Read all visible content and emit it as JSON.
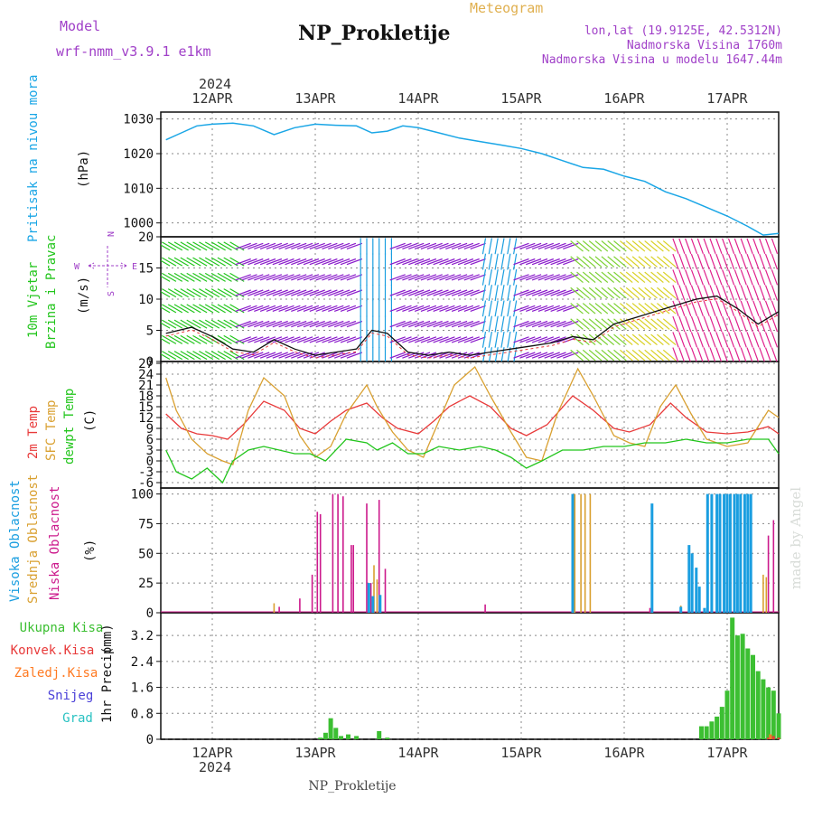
{
  "header": {
    "model_label": "Model",
    "model_name": "wrf-nmm_v3.9.1 e1km",
    "title": "NP_Prokletije",
    "meteogram_label": "Meteogram",
    "lonlat": "lon,lat (19.9125E, 42.5312N)",
    "altitude": "Nadmorska Visina 1760m",
    "model_altitude": "Nadmorska Visina u modelu 1647.44m",
    "footer": "NP_Prokletije",
    "watermark": "made by Angel",
    "year": "2024"
  },
  "colors": {
    "pressure": "#1aa6e6",
    "temp2m": "#e83a3a",
    "sfc_temp": "#d9a030",
    "dewpoint": "#22c51c",
    "cloud_high": "#1a9ee0",
    "cloud_mid": "#d9a030",
    "cloud_low": "#cc1a8c",
    "precip_total": "#3cbf32",
    "precip_conv": "#e83a3a",
    "precip_freezing": "#ff7a22",
    "snow": "#4a40d8",
    "hail": "#2ac2c2",
    "model_text": "#a040c8",
    "meteogram_text": "#e0b050"
  },
  "chart_data": [
    {
      "type": "line",
      "name": "pressure",
      "ylabel": "Pritisak na nivou mora",
      "unit": "(hPa)",
      "ylim": [
        996,
        1032
      ],
      "yticks": [
        1000,
        1010,
        1020,
        1030
      ],
      "x_days": [
        "12APR",
        "13APR",
        "14APR",
        "15APR",
        "16APR",
        "17APR"
      ],
      "x": [
        11.55,
        11.7,
        11.85,
        12.0,
        12.2,
        12.4,
        12.6,
        12.8,
        13.0,
        13.2,
        13.4,
        13.55,
        13.7,
        13.85,
        14.0,
        14.2,
        14.4,
        14.6,
        14.8,
        15.0,
        15.2,
        15.4,
        15.6,
        15.8,
        16.0,
        16.2,
        16.4,
        16.6,
        16.8,
        17.0,
        17.2,
        17.35,
        17.5
      ],
      "values": [
        1024,
        1026,
        1028,
        1028.5,
        1028.8,
        1028,
        1025.5,
        1027.5,
        1028.5,
        1028.2,
        1028,
        1026,
        1026.5,
        1028,
        1027.5,
        1026,
        1024.5,
        1023.5,
        1022.5,
        1021.5,
        1020,
        1018,
        1016,
        1015.5,
        1013.5,
        1012,
        1009,
        1007,
        1004.5,
        1002,
        999,
        996.5,
        997
      ]
    },
    {
      "type": "line",
      "name": "wind",
      "ylabel": "10m Vjetar",
      "ylabel2": "Brzina i Pravac",
      "unit": "(m/s)",
      "compass": {
        "north": "N",
        "west": "W",
        "east": "E",
        "south": "S"
      },
      "ylim": [
        0,
        20
      ],
      "yticks": [
        0,
        5,
        10,
        15,
        20
      ],
      "x": [
        11.55,
        11.8,
        12.0,
        12.2,
        12.4,
        12.6,
        12.8,
        13.0,
        13.2,
        13.4,
        13.55,
        13.7,
        13.9,
        14.1,
        14.3,
        14.5,
        14.7,
        14.9,
        15.1,
        15.3,
        15.5,
        15.7,
        15.9,
        16.1,
        16.3,
        16.5,
        16.7,
        16.9,
        17.1,
        17.3,
        17.5
      ],
      "values": [
        4.5,
        5.5,
        4,
        2,
        1.5,
        3.5,
        2,
        1,
        1.5,
        2,
        5,
        4.5,
        1.5,
        1,
        1.5,
        1,
        1.5,
        2,
        2.5,
        3,
        4,
        3.5,
        6,
        7,
        8,
        9,
        10,
        10.5,
        8.5,
        6,
        8
      ]
    },
    {
      "type": "line",
      "name": "temperature",
      "ylabel": "2m Temp",
      "ylabel2": "SFC Temp",
      "ylabel3": "dewpt Temp",
      "unit": "(C)",
      "ylim": [
        -7.5,
        27.5
      ],
      "yticks": [
        -6,
        -3,
        0,
        3,
        6,
        9,
        12,
        15,
        18,
        21,
        24,
        27
      ],
      "series": [
        {
          "key": "temp2m",
          "x": [
            11.55,
            11.7,
            11.85,
            12.0,
            12.15,
            12.3,
            12.5,
            12.7,
            12.85,
            13.0,
            13.15,
            13.3,
            13.5,
            13.65,
            13.8,
            14.0,
            14.15,
            14.3,
            14.5,
            14.7,
            14.9,
            15.05,
            15.25,
            15.5,
            15.7,
            15.9,
            16.05,
            16.25,
            16.45,
            16.6,
            16.8,
            17.0,
            17.2,
            17.4,
            17.5
          ],
          "values": [
            13,
            9,
            7.5,
            7,
            6,
            10,
            16.5,
            14,
            9,
            7.5,
            11,
            14,
            16,
            12,
            9,
            7.5,
            11,
            15,
            18,
            15,
            9,
            7,
            10,
            18,
            14,
            9,
            8,
            10,
            16,
            12,
            8,
            7.5,
            8,
            9.5,
            7.5
          ]
        },
        {
          "key": "sfc_temp",
          "x": [
            11.55,
            11.65,
            11.8,
            11.95,
            12.1,
            12.2,
            12.35,
            12.5,
            12.7,
            12.85,
            13.0,
            13.15,
            13.3,
            13.5,
            13.6,
            13.75,
            13.9,
            14.05,
            14.2,
            14.35,
            14.55,
            14.7,
            14.9,
            15.05,
            15.2,
            15.35,
            15.55,
            15.7,
            15.9,
            16.05,
            16.2,
            16.35,
            16.5,
            16.65,
            16.8,
            17.0,
            17.2,
            17.4,
            17.5
          ],
          "values": [
            23,
            14,
            6,
            2,
            0,
            -1,
            14,
            23,
            18,
            7,
            1,
            4,
            13,
            21,
            15,
            8,
            3,
            1,
            11,
            21,
            26,
            18,
            8,
            1,
            0,
            13,
            25.5,
            18,
            7,
            5,
            4,
            15,
            21,
            13,
            6,
            4,
            5,
            14,
            12
          ]
        },
        {
          "key": "dewpoint",
          "x": [
            11.55,
            11.65,
            11.8,
            11.95,
            12.1,
            12.2,
            12.35,
            12.5,
            12.65,
            12.8,
            12.95,
            13.1,
            13.3,
            13.5,
            13.6,
            13.75,
            13.9,
            14.05,
            14.2,
            14.4,
            14.6,
            14.75,
            14.9,
            15.05,
            15.2,
            15.4,
            15.6,
            15.8,
            16.0,
            16.2,
            16.4,
            16.6,
            16.8,
            17.0,
            17.2,
            17.4,
            17.5
          ],
          "values": [
            3,
            -3,
            -5,
            -2,
            -6,
            0,
            3,
            4,
            3,
            2,
            2,
            0,
            6,
            5,
            3,
            5,
            2,
            2,
            4,
            3,
            4,
            3,
            1,
            -2,
            0,
            3,
            3,
            4,
            4,
            5,
            5,
            6,
            5,
            5,
            6,
            6,
            2
          ]
        }
      ]
    },
    {
      "type": "bar",
      "name": "clouds",
      "ylabel": "Visoka Oblacnost",
      "ylabel2": "Srednja Oblacnost",
      "ylabel3": "Niska Oblacnost",
      "unit": "(%)",
      "ylim": [
        0,
        105
      ],
      "yticks": [
        0,
        25,
        50,
        75,
        100
      ],
      "series": [
        {
          "key": "cloud_low",
          "x": [
            12.65,
            12.85,
            12.97,
            13.02,
            13.05,
            13.17,
            13.22,
            13.27,
            13.35,
            13.37,
            13.5,
            13.54,
            13.62,
            13.68,
            14.65,
            16.25,
            17.4,
            17.45
          ],
          "values": [
            5,
            12,
            32,
            85,
            83,
            100,
            100,
            98,
            57,
            57,
            92,
            25,
            95,
            37,
            7,
            4,
            65,
            78
          ]
        },
        {
          "key": "cloud_mid",
          "x": [
            12.6,
            13.57,
            13.6,
            15.52,
            15.58,
            15.62,
            15.67,
            16.55,
            17.35,
            17.38
          ],
          "values": [
            8,
            40,
            28,
            100,
            100,
            100,
            100,
            6,
            32,
            30
          ]
        },
        {
          "key": "cloud_high",
          "x": [
            13.52,
            13.56,
            13.63,
            15.5,
            16.27,
            16.55,
            16.63,
            16.66,
            16.7,
            16.73,
            16.78,
            16.81,
            16.85,
            16.9,
            16.93,
            16.97,
            17.0,
            17.03,
            17.07,
            17.1,
            17.13,
            17.17,
            17.2,
            17.23
          ],
          "values": [
            25,
            14,
            15,
            100,
            92,
            5,
            57,
            50,
            38,
            22,
            4,
            100,
            100,
            100,
            100,
            100,
            100,
            100,
            100,
            100,
            100,
            100,
            100,
            100
          ]
        }
      ]
    },
    {
      "type": "bar",
      "name": "precipitation",
      "legend": [
        "Ukupna Kisa",
        "Konvek.Kisa",
        "Zaledj.Kisa",
        "Snijeg",
        "Grad"
      ],
      "ylabel": "1hr Precip",
      "unit": "(mm)",
      "ylim": [
        0,
        3.9
      ],
      "yticks": [
        0,
        0.8,
        1.6,
        2.4,
        3.2
      ],
      "ytick_labels": [
        "0",
        "0.8",
        "1.6",
        "2.4",
        "3.2"
      ],
      "x": [
        13.05,
        13.1,
        13.15,
        13.2,
        13.25,
        13.32,
        13.4,
        13.62,
        13.7,
        16.75,
        16.8,
        16.85,
        16.9,
        16.95,
        17.0,
        17.05,
        17.1,
        17.15,
        17.2,
        17.25,
        17.3,
        17.35,
        17.4,
        17.45,
        17.5
      ],
      "values": [
        0.05,
        0.2,
        0.65,
        0.35,
        0.1,
        0.15,
        0.1,
        0.25,
        0.05,
        0.4,
        0.4,
        0.55,
        0.7,
        1.0,
        1.5,
        3.75,
        3.2,
        3.25,
        2.8,
        2.6,
        2.1,
        1.85,
        1.6,
        1.5,
        0.8
      ],
      "conv_x": [
        17.4,
        17.45,
        17.5
      ],
      "conv_values": [
        0.05,
        0.1,
        0.05
      ],
      "frz_x": [
        17.42
      ],
      "frz_values": [
        0.15
      ]
    }
  ]
}
